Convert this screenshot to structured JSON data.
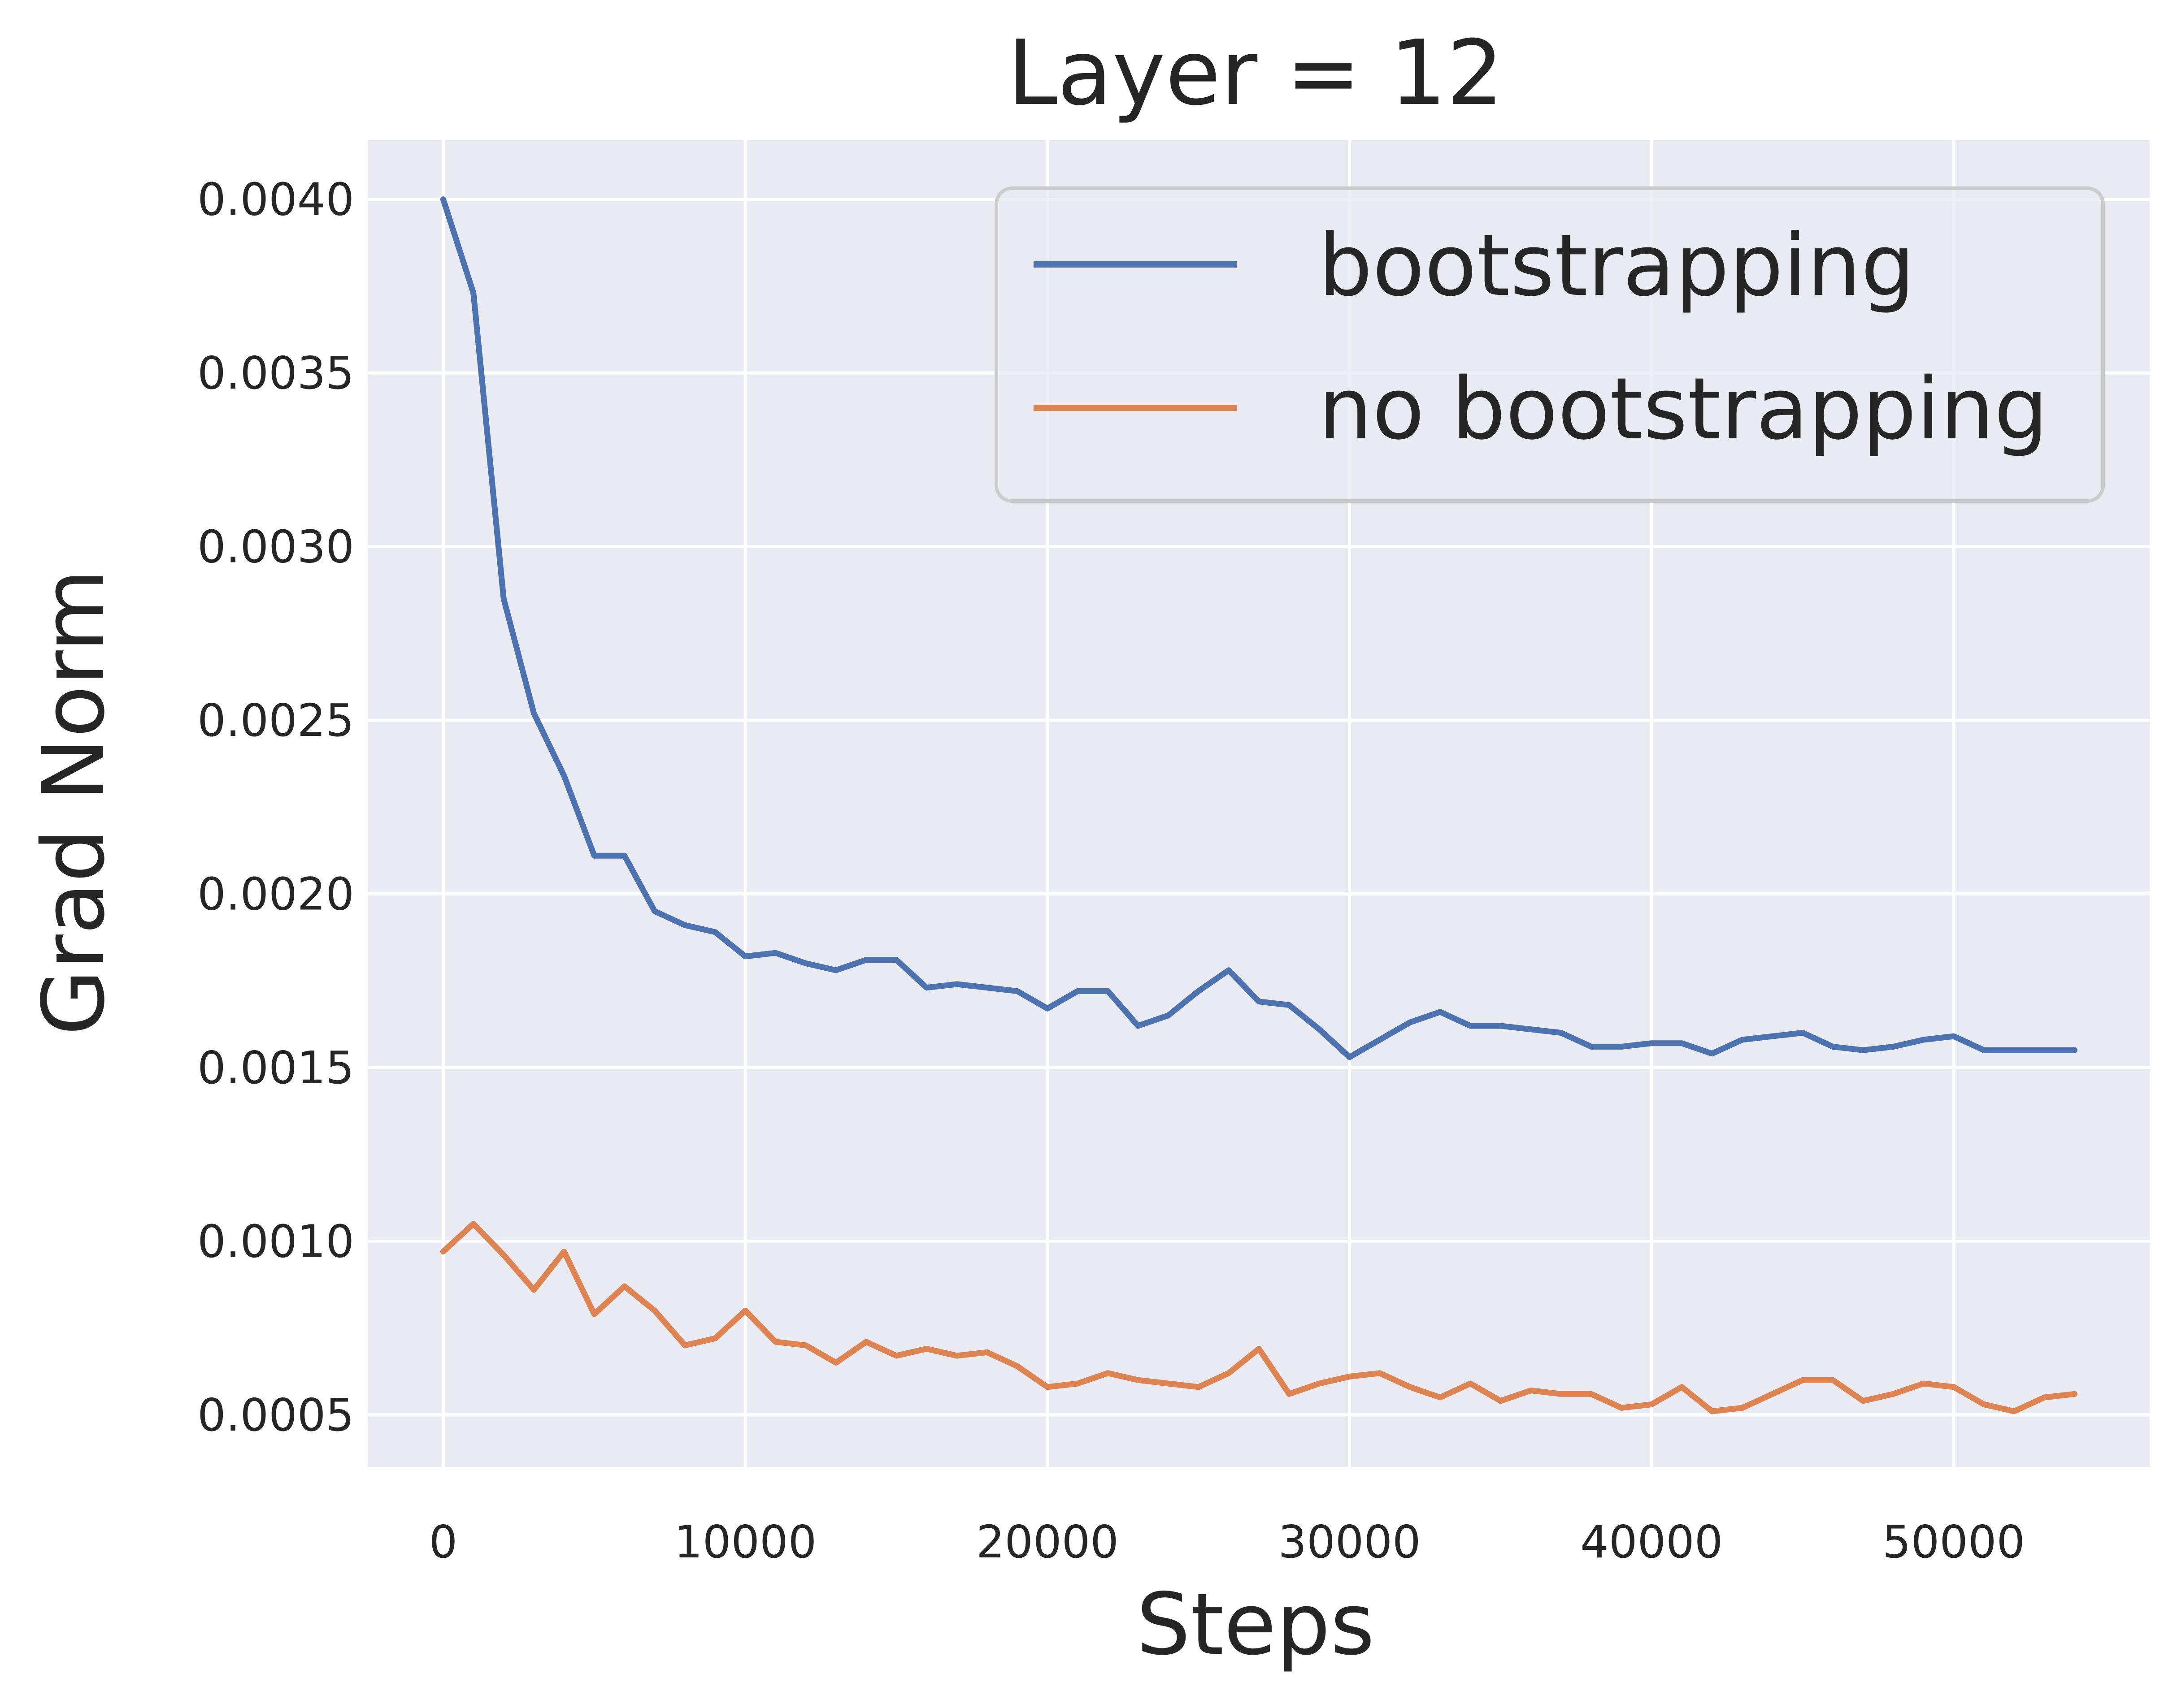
{
  "chart_data": {
    "type": "line",
    "title": "Layer = 12",
    "xlabel": "Steps",
    "ylabel": "Grad Norm",
    "xlim": [
      -2500,
      56500
    ],
    "ylim": [
      0.00035,
      0.00417
    ],
    "xticks": [
      0,
      10000,
      20000,
      30000,
      40000,
      50000
    ],
    "xtick_labels": [
      "0",
      "10000",
      "20000",
      "30000",
      "40000",
      "50000"
    ],
    "yticks": [
      0.0005,
      0.001,
      0.0015,
      0.002,
      0.0025,
      0.003,
      0.0035,
      0.004
    ],
    "ytick_labels": [
      "0.0005",
      "0.0010",
      "0.0015",
      "0.0020",
      "0.0025",
      "0.0030",
      "0.0035",
      "0.0040"
    ],
    "grid": true,
    "legend_position": "top-right",
    "x": [
      0,
      1000,
      2000,
      3000,
      4000,
      5000,
      6000,
      7000,
      8000,
      9000,
      10000,
      11000,
      12000,
      13000,
      14000,
      15000,
      16000,
      17000,
      18000,
      19000,
      20000,
      21000,
      22000,
      23000,
      24000,
      25000,
      26000,
      27000,
      28000,
      29000,
      30000,
      31000,
      32000,
      33000,
      34000,
      35000,
      36000,
      37000,
      38000,
      39000,
      40000,
      41000,
      42000,
      43000,
      44000,
      45000,
      46000,
      47000,
      48000,
      49000,
      50000,
      51000,
      52000,
      53000,
      54000
    ],
    "series": [
      {
        "name": "bootstrapping",
        "color": "#4c72b0",
        "values": [
          0.004,
          0.00373,
          0.00285,
          0.00252,
          0.00234,
          0.00211,
          0.00211,
          0.00195,
          0.00191,
          0.00189,
          0.00182,
          0.00183,
          0.0018,
          0.00178,
          0.00181,
          0.00181,
          0.00173,
          0.00174,
          0.00173,
          0.00172,
          0.00167,
          0.00172,
          0.00172,
          0.00162,
          0.00165,
          0.00172,
          0.00178,
          0.00169,
          0.00168,
          0.00161,
          0.00153,
          0.00158,
          0.00163,
          0.00166,
          0.00162,
          0.00162,
          0.00161,
          0.0016,
          0.00156,
          0.00156,
          0.00157,
          0.00157,
          0.00154,
          0.00158,
          0.00159,
          0.0016,
          0.00156,
          0.00155,
          0.00156,
          0.00158,
          0.00159,
          0.00155,
          0.00155,
          0.00155,
          0.00155
        ]
      },
      {
        "name": "no bootstrapping",
        "color": "#dd8452",
        "values": [
          0.00097,
          0.00105,
          0.00096,
          0.00086,
          0.00097,
          0.00079,
          0.00087,
          0.0008,
          0.0007,
          0.00072,
          0.0008,
          0.00071,
          0.0007,
          0.00065,
          0.00071,
          0.00067,
          0.00069,
          0.00067,
          0.00068,
          0.00064,
          0.00058,
          0.00059,
          0.00062,
          0.0006,
          0.00059,
          0.00058,
          0.00062,
          0.00069,
          0.00056,
          0.00059,
          0.00061,
          0.00062,
          0.00058,
          0.00055,
          0.00059,
          0.00054,
          0.00057,
          0.00056,
          0.00056,
          0.00052,
          0.00053,
          0.00058,
          0.00051,
          0.00052,
          0.00056,
          0.0006,
          0.0006,
          0.00054,
          0.00056,
          0.00059,
          0.00058,
          0.00053,
          0.00051,
          0.00055,
          0.00056
        ]
      }
    ]
  },
  "colors": {
    "plot_background": "#eaeaf2",
    "grid": "#ffffff",
    "text": "#262626"
  }
}
